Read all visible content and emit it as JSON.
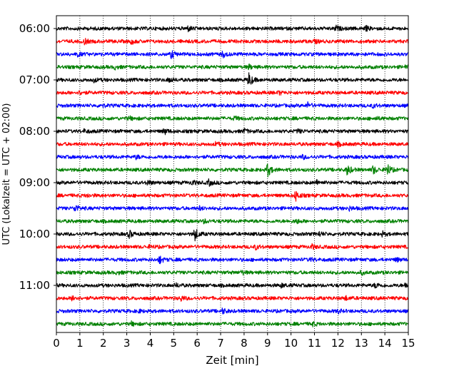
{
  "chart_data": {
    "type": "line",
    "xlabel": "Zeit  [min]",
    "ylabel": "UTC (Lokalzeit = UTC + 02:00)",
    "xlim": [
      0,
      15
    ],
    "x_ticks": [
      "0",
      "1",
      "2",
      "3",
      "4",
      "5",
      "6",
      "7",
      "8",
      "9",
      "10",
      "11",
      "12",
      "13",
      "14",
      "15"
    ],
    "y_ticks": [
      "06:00",
      "07:00",
      "08:00",
      "09:00",
      "10:00",
      "11:00"
    ],
    "grid": "vertical-dotted",
    "trace_minutes": 15,
    "trace_colors": [
      "#000000",
      "#ff0000",
      "#0000ff",
      "#008000"
    ],
    "series": [
      {
        "start": "06:00",
        "color": "#000000",
        "events": [
          {
            "t": 5.6,
            "a": 0.6
          },
          {
            "t": 11.9,
            "a": 0.6
          },
          {
            "t": 13.2,
            "a": 0.5
          }
        ]
      },
      {
        "start": "06:15",
        "color": "#ff0000",
        "events": [
          {
            "t": 1.2,
            "a": 0.6
          },
          {
            "t": 3.2,
            "a": 0.5
          },
          {
            "t": 11.0,
            "a": 0.4
          }
        ]
      },
      {
        "start": "06:30",
        "color": "#0000ff",
        "events": [
          {
            "t": 4.9,
            "a": 0.9
          },
          {
            "t": 7.1,
            "a": 0.7
          },
          {
            "t": 0.9,
            "a": 0.4
          }
        ]
      },
      {
        "start": "06:45",
        "color": "#008000",
        "events": [
          {
            "t": 2.5,
            "a": 0.4
          },
          {
            "t": 8.2,
            "a": 0.5
          },
          {
            "t": 14.9,
            "a": 0.4
          }
        ]
      },
      {
        "start": "07:00",
        "color": "#000000",
        "events": [
          {
            "t": 8.2,
            "a": 1.8
          },
          {
            "t": 4.8,
            "a": 0.6
          },
          {
            "t": 1.6,
            "a": 0.4
          }
        ]
      },
      {
        "start": "07:15",
        "color": "#ff0000",
        "events": [
          {
            "t": 1.0,
            "a": 0.4
          },
          {
            "t": 9.5,
            "a": 0.4
          }
        ]
      },
      {
        "start": "07:30",
        "color": "#0000ff",
        "events": [
          {
            "t": 10.7,
            "a": 0.7
          },
          {
            "t": 1.9,
            "a": 0.4
          },
          {
            "t": 13.5,
            "a": 0.4
          }
        ]
      },
      {
        "start": "07:45",
        "color": "#008000",
        "events": [
          {
            "t": 3.1,
            "a": 0.4
          },
          {
            "t": 7.6,
            "a": 0.4
          },
          {
            "t": 13.6,
            "a": 0.3
          }
        ]
      },
      {
        "start": "08:00",
        "color": "#000000",
        "events": [
          {
            "t": 4.6,
            "a": 0.7
          },
          {
            "t": 8.0,
            "a": 0.5
          },
          {
            "t": 10.3,
            "a": 0.4
          },
          {
            "t": 1.2,
            "a": 0.4
          }
        ]
      },
      {
        "start": "08:15",
        "color": "#ff0000",
        "events": [
          {
            "t": 6.8,
            "a": 0.4
          },
          {
            "t": 12.0,
            "a": 0.4
          }
        ]
      },
      {
        "start": "08:30",
        "color": "#0000ff",
        "events": [
          {
            "t": 3.4,
            "a": 0.4
          },
          {
            "t": 10.5,
            "a": 0.4
          }
        ]
      },
      {
        "start": "08:45",
        "color": "#008000",
        "events": [
          {
            "t": 9.0,
            "a": 1.7
          },
          {
            "t": 12.4,
            "a": 1.3
          },
          {
            "t": 13.5,
            "a": 1.0
          },
          {
            "t": 14.1,
            "a": 1.5
          }
        ]
      },
      {
        "start": "09:00",
        "color": "#000000",
        "events": [
          {
            "t": 6.5,
            "a": 0.7
          },
          {
            "t": 3.9,
            "a": 0.6
          },
          {
            "t": 5.8,
            "a": 0.5
          },
          {
            "t": 11.1,
            "a": 0.5
          }
        ]
      },
      {
        "start": "09:15",
        "color": "#ff0000",
        "events": [
          {
            "t": 10.2,
            "a": 1.3
          },
          {
            "t": 1.3,
            "a": 0.4
          }
        ]
      },
      {
        "start": "09:30",
        "color": "#0000ff",
        "events": [
          {
            "t": 0.8,
            "a": 0.9
          },
          {
            "t": 6.1,
            "a": 0.4
          },
          {
            "t": 12.5,
            "a": 0.4
          }
        ]
      },
      {
        "start": "09:45",
        "color": "#008000",
        "events": [
          {
            "t": 10.2,
            "a": 0.6
          },
          {
            "t": 6.3,
            "a": 0.4
          }
        ]
      },
      {
        "start": "10:00",
        "color": "#000000",
        "events": [
          {
            "t": 5.9,
            "a": 1.6
          },
          {
            "t": 3.1,
            "a": 0.9
          },
          {
            "t": 11.2,
            "a": 0.5
          },
          {
            "t": 13.9,
            "a": 0.5
          }
        ]
      },
      {
        "start": "10:15",
        "color": "#ff0000",
        "events": [
          {
            "t": 8.5,
            "a": 0.5
          },
          {
            "t": 10.9,
            "a": 0.5
          },
          {
            "t": 4.0,
            "a": 0.4
          }
        ]
      },
      {
        "start": "10:30",
        "color": "#0000ff",
        "events": [
          {
            "t": 4.4,
            "a": 0.9
          },
          {
            "t": 10.8,
            "a": 0.4
          },
          {
            "t": 14.5,
            "a": 0.4
          }
        ]
      },
      {
        "start": "10:45",
        "color": "#008000",
        "events": [
          {
            "t": 2.6,
            "a": 0.4
          },
          {
            "t": 7.9,
            "a": 0.4
          },
          {
            "t": 13.0,
            "a": 0.4
          }
        ]
      },
      {
        "start": "11:00",
        "color": "#000000",
        "events": [
          {
            "t": 13.6,
            "a": 0.6
          },
          {
            "t": 14.9,
            "a": 0.7
          },
          {
            "t": 5.1,
            "a": 0.4
          },
          {
            "t": 9.6,
            "a": 0.4
          }
        ]
      },
      {
        "start": "11:15",
        "color": "#ff0000",
        "events": [
          {
            "t": 0.7,
            "a": 0.7
          },
          {
            "t": 5.3,
            "a": 0.6
          },
          {
            "t": 12.3,
            "a": 0.5
          }
        ]
      },
      {
        "start": "11:30",
        "color": "#0000ff",
        "events": [
          {
            "t": 7.1,
            "a": 0.6
          },
          {
            "t": 12.0,
            "a": 0.4
          },
          {
            "t": 3.5,
            "a": 0.3
          }
        ]
      },
      {
        "start": "11:45",
        "color": "#008000",
        "events": [
          {
            "t": 10.9,
            "a": 0.5
          },
          {
            "t": 3.2,
            "a": 0.4
          }
        ]
      }
    ]
  }
}
